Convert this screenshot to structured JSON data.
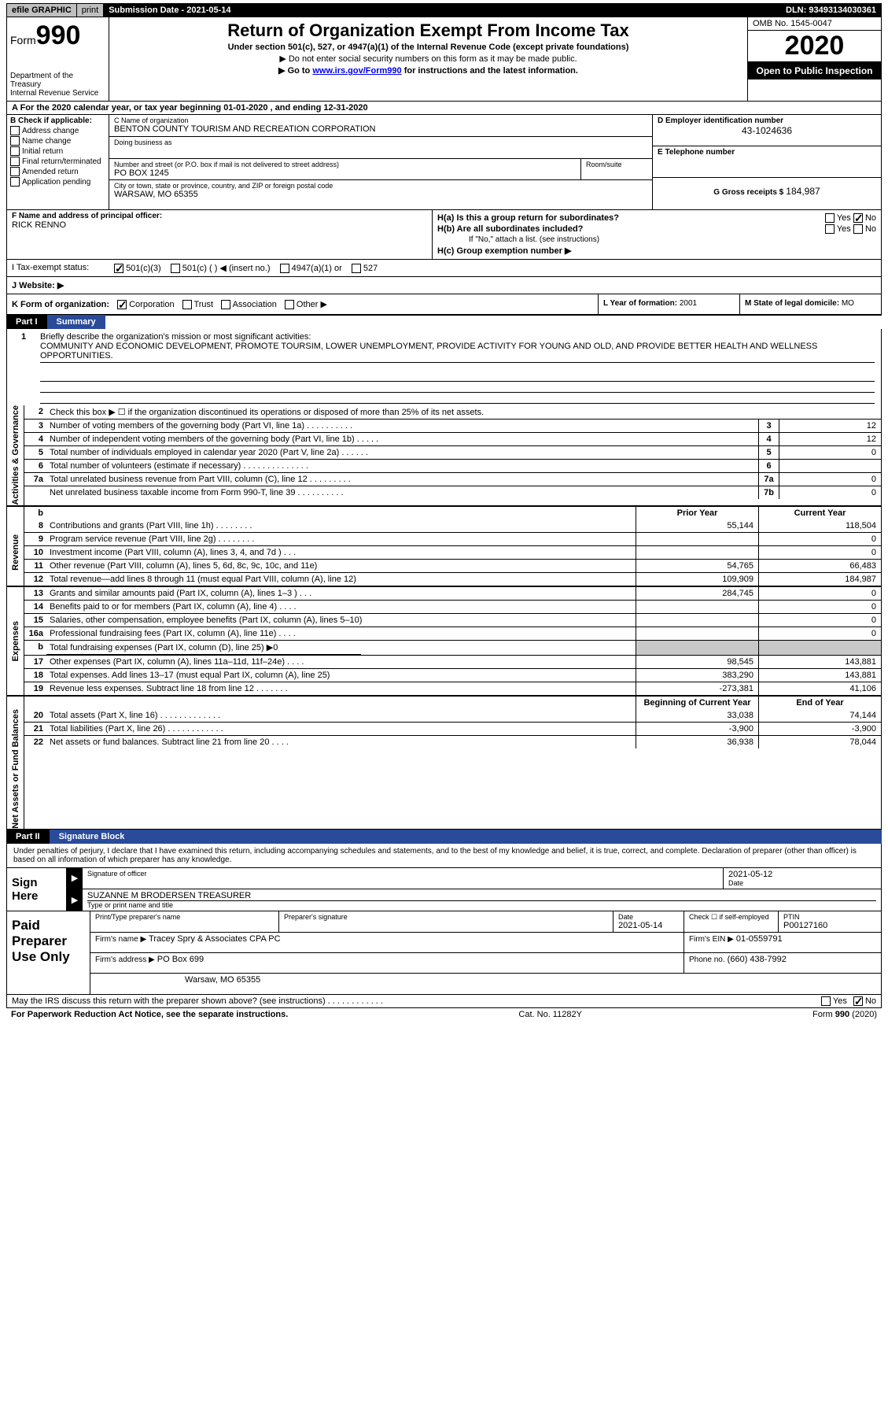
{
  "topbar": {
    "efile": "efile GRAPHIC",
    "print": "print",
    "submission": "Submission Date - 2021-05-14",
    "dln": "DLN: 93493134030361"
  },
  "formhead": {
    "form_label": "Form",
    "form_num": "990",
    "title": "Return of Organization Exempt From Income Tax",
    "sub1": "Under section 501(c), 527, or 4947(a)(1) of the Internal Revenue Code (except private foundations)",
    "sub2": "▶ Do not enter social security numbers on this form as it may be made public.",
    "sub3_pre": "▶ Go to ",
    "sub3_link": "www.irs.gov/Form990",
    "sub3_post": " for instructions and the latest information.",
    "dept": "Department of the Treasury\nInternal Revenue Service",
    "omb": "OMB No. 1545-0047",
    "year": "2020",
    "public": "Open to Public Inspection"
  },
  "period": "A For the 2020 calendar year, or tax year beginning 01-01-2020    , and ending 12-31-2020",
  "entity": {
    "b_label": "B Check if applicable:",
    "b_opts": [
      "Address change",
      "Name change",
      "Initial return",
      "Final return/terminated",
      "Amended return",
      "Application pending"
    ],
    "c_name_lab": "C Name of organization",
    "c_name": "BENTON COUNTY TOURISM AND RECREATION CORPORATION",
    "dba_lab": "Doing business as",
    "dba": "",
    "addr_lab": "Number and street (or P.O. box if mail is not delivered to street address)",
    "addr": "PO BOX 1245",
    "room_lab": "Room/suite",
    "city_lab": "City or town, state or province, country, and ZIP or foreign postal code",
    "city": "WARSAW, MO  65355",
    "d_lab": "D Employer identification number",
    "d_val": "43-1024636",
    "e_lab": "E Telephone number",
    "e_val": "",
    "g_lab": "G Gross receipts $",
    "g_val": "184,987"
  },
  "namerow": {
    "f_lab": "F  Name and address of principal officer:",
    "f_val": "RICK RENNO",
    "ha": "H(a)  Is this a group return for subordinates?",
    "hb": "H(b)  Are all subordinates included?",
    "hb_note": "If \"No,\" attach a list. (see instructions)",
    "hc": "H(c)  Group exemption number ▶",
    "yes": "Yes",
    "no": "No"
  },
  "tax": {
    "lab": "I  Tax-exempt status:",
    "o1": "501(c)(3)",
    "o2": "501(c) (  ) ◀ (insert no.)",
    "o3": "4947(a)(1) or",
    "o4": "527"
  },
  "web": {
    "lab": "J  Website: ▶"
  },
  "krow": {
    "k": "K Form of organization:",
    "opts": [
      "Corporation",
      "Trust",
      "Association",
      "Other ▶"
    ],
    "l_lab": "L Year of formation:",
    "l_val": "2001",
    "m_lab": "M State of legal domicile:",
    "m_val": "MO"
  },
  "part1": {
    "num": "Part I",
    "title": "Summary"
  },
  "mission": {
    "n": "1",
    "lab": "Briefly describe the organization's mission or most significant activities:",
    "text": "COMMUNITY AND ECONOMIC DEVELOPMENT, PROMOTE TOURSIM, LOWER UNEMPLOYMENT, PROVIDE ACTIVITY FOR YOUNG AND OLD, AND PROVIDE BETTER HEALTH AND WELLNESS OPPORTUNITIES."
  },
  "gov": {
    "side": "Activities & Governance",
    "rows": [
      {
        "n": "2",
        "d": "Check this box ▶ ☐  if the organization discontinued its operations or disposed of more than 25% of its net assets."
      },
      {
        "n": "3",
        "d": "Number of voting members of the governing body (Part VI, line 1a)  .  .  .  .  .  .  .  .  .  .",
        "box": "3",
        "v": "12"
      },
      {
        "n": "4",
        "d": "Number of independent voting members of the governing body (Part VI, line 1b)  .  .  .  .  .",
        "box": "4",
        "v": "12"
      },
      {
        "n": "5",
        "d": "Total number of individuals employed in calendar year 2020 (Part V, line 2a)  .  .  .  .  .  .",
        "box": "5",
        "v": "0"
      },
      {
        "n": "6",
        "d": "Total number of volunteers (estimate if necessary)  .  .  .  .  .  .  .  .  .  .  .  .  .  .",
        "box": "6",
        "v": ""
      },
      {
        "n": "7a",
        "d": "Total unrelated business revenue from Part VIII, column (C), line 12  .  .  .  .  .  .  .  .  .",
        "box": "7a",
        "v": "0"
      },
      {
        "n": "",
        "d": "Net unrelated business taxable income from Form 990-T, line 39  .  .  .  .  .  .  .  .  .  .",
        "box": "7b",
        "v": "0"
      }
    ]
  },
  "revhead": {
    "b": "b",
    "py": "Prior Year",
    "cy": "Current Year"
  },
  "rev": {
    "side": "Revenue",
    "rows": [
      {
        "n": "8",
        "d": "Contributions and grants (Part VIII, line 1h)  .  .  .  .  .  .  .  .",
        "py": "55,144",
        "cy": "118,504"
      },
      {
        "n": "9",
        "d": "Program service revenue (Part VIII, line 2g)  .  .  .  .  .  .  .  .",
        "py": "",
        "cy": "0"
      },
      {
        "n": "10",
        "d": "Investment income (Part VIII, column (A), lines 3, 4, and 7d )  .  .  .",
        "py": "",
        "cy": "0"
      },
      {
        "n": "11",
        "d": "Other revenue (Part VIII, column (A), lines 5, 6d, 8c, 9c, 10c, and 11e)",
        "py": "54,765",
        "cy": "66,483"
      },
      {
        "n": "12",
        "d": "Total revenue—add lines 8 through 11 (must equal Part VIII, column (A), line 12)",
        "py": "109,909",
        "cy": "184,987"
      }
    ]
  },
  "exp": {
    "side": "Expenses",
    "rows": [
      {
        "n": "13",
        "d": "Grants and similar amounts paid (Part IX, column (A), lines 1–3 )  .  .  .",
        "py": "284,745",
        "cy": "0"
      },
      {
        "n": "14",
        "d": "Benefits paid to or for members (Part IX, column (A), line 4)  .  .  .  .",
        "py": "",
        "cy": "0"
      },
      {
        "n": "15",
        "d": "Salaries, other compensation, employee benefits (Part IX, column (A), lines 5–10)",
        "py": "",
        "cy": "0"
      },
      {
        "n": "16a",
        "d": "Professional fundraising fees (Part IX, column (A), line 11e)  .  .  .  .",
        "py": "",
        "cy": "0"
      },
      {
        "n": "b",
        "d": "Total fundraising expenses (Part IX, column (D), line 25) ▶0",
        "fund": true
      },
      {
        "n": "17",
        "d": "Other expenses (Part IX, column (A), lines 11a–11d, 11f–24e)  .  .  .  .",
        "py": "98,545",
        "cy": "143,881"
      },
      {
        "n": "18",
        "d": "Total expenses. Add lines 13–17 (must equal Part IX, column (A), line 25)",
        "py": "383,290",
        "cy": "143,881"
      },
      {
        "n": "19",
        "d": "Revenue less expenses. Subtract line 18 from line 12  .  .  .  .  .  .  .",
        "py": "-273,381",
        "cy": "41,106"
      }
    ]
  },
  "nethead": {
    "py": "Beginning of Current Year",
    "cy": "End of Year"
  },
  "net": {
    "side": "Net Assets or Fund Balances",
    "rows": [
      {
        "n": "20",
        "d": "Total assets (Part X, line 16)  .  .  .  .  .  .  .  .  .  .  .  .  .",
        "py": "33,038",
        "cy": "74,144"
      },
      {
        "n": "21",
        "d": "Total liabilities (Part X, line 26)  .  .  .  .  .  .  .  .  .  .  .  .",
        "py": "-3,900",
        "cy": "-3,900"
      },
      {
        "n": "22",
        "d": "Net assets or fund balances. Subtract line 21 from line 20  .  .  .  .",
        "py": "36,938",
        "cy": "78,044"
      }
    ]
  },
  "part2": {
    "num": "Part II",
    "title": "Signature Block"
  },
  "decl": "Under penalties of perjury, I declare that I have examined this return, including accompanying schedules and statements, and to the best of my knowledge and belief, it is true, correct, and complete. Declaration of preparer (other than officer) is based on all information of which preparer has any knowledge.",
  "sign": {
    "lab": "Sign Here",
    "sig_lab": "Signature of officer",
    "date_lab": "Date",
    "date": "2021-05-12",
    "name": "SUZANNE M BRODERSEN  TREASURER",
    "name_lab": "Type or print name and title"
  },
  "prep": {
    "lab": "Paid Preparer Use Only",
    "pt_lab": "Print/Type preparer's name",
    "sig_lab": "Preparer's signature",
    "date_lab": "Date",
    "date": "2021-05-14",
    "check_lab": "Check ☐ if self-employed",
    "ptin_lab": "PTIN",
    "ptin": "P00127160",
    "firm_lab": "Firm's name    ▶",
    "firm": "Tracey Spry & Associates CPA PC",
    "ein_lab": "Firm's EIN ▶",
    "ein": "01-0559791",
    "addr_lab": "Firm's address ▶",
    "addr1": "PO Box 699",
    "addr2": "Warsaw, MO  65355",
    "phone_lab": "Phone no.",
    "phone": "(660) 438-7992"
  },
  "discuss": {
    "q": "May the IRS discuss this return with the preparer shown above? (see instructions)  .  .  .  .  .  .  .  .  .  .  .  .",
    "yes": "Yes",
    "no": "No"
  },
  "footer": {
    "left": "For Paperwork Reduction Act Notice, see the separate instructions.",
    "mid": "Cat. No. 11282Y",
    "right": "Form 990 (2020)"
  },
  "colors": {
    "black": "#000000",
    "blueheader": "#2a4a9a",
    "gray": "#c8c8c8",
    "link": "#0000ee"
  }
}
